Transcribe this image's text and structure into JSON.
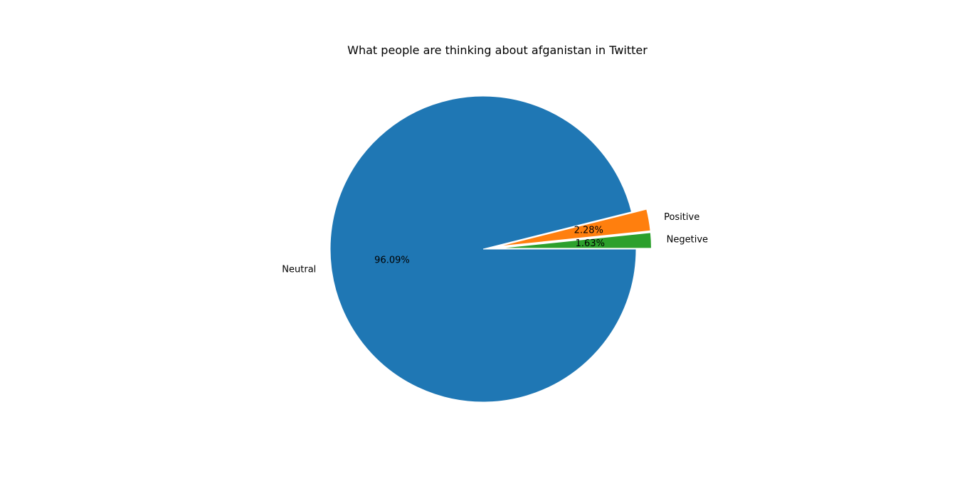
{
  "chart_data": {
    "type": "pie",
    "title": "What people are thinking about afganistan in Twitter",
    "slices": [
      {
        "label": "Neutral",
        "value": 96.09,
        "pct_label": "96.09%",
        "color": "#1f77b4",
        "exploded": false
      },
      {
        "label": "Positive",
        "value": 2.28,
        "pct_label": "2.28%",
        "color": "#ff7f0e",
        "exploded": true
      },
      {
        "label": "Negetive",
        "value": 1.63,
        "pct_label": "1.63%",
        "color": "#2ca02c",
        "exploded": true
      }
    ],
    "direction": "clockwise",
    "start_angle": "east",
    "legend": "none"
  }
}
